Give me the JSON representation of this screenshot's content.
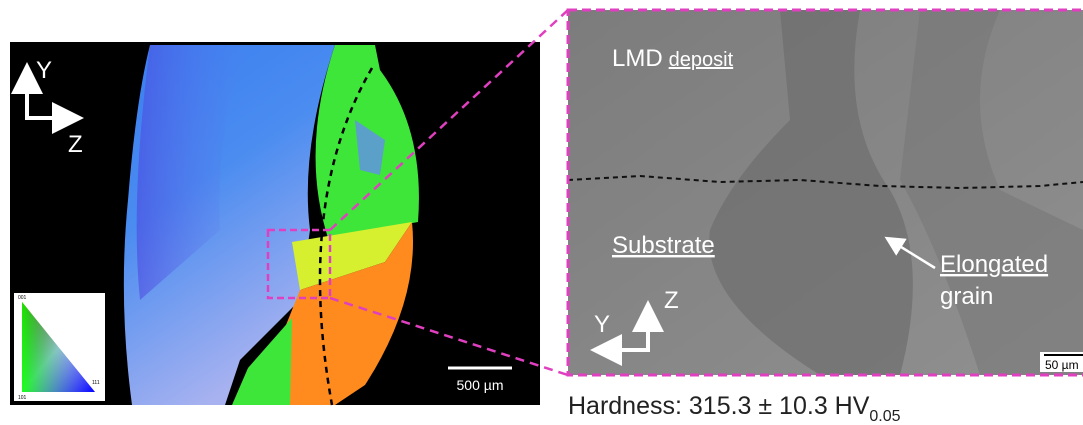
{
  "left_panel": {
    "axis_y": "Y",
    "axis_z": "Z",
    "scale_bar": "500 µm",
    "ipf_labels": [
      "001",
      "101",
      "111"
    ]
  },
  "right_panel": {
    "region_top_main": "LMD",
    "region_top_sub": "deposit",
    "region_bottom": "Substrate",
    "annotation_line1": "Elongated",
    "annotation_line2": "grain",
    "axis_y": "Y",
    "axis_z": "Z",
    "scale_bar": "50 µm"
  },
  "caption": {
    "text": "Hardness: 315.3 ± 10.3 HV",
    "subscript": "0.05"
  }
}
